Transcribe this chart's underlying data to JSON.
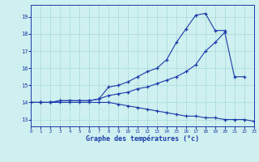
{
  "hours": [
    0,
    1,
    2,
    3,
    4,
    5,
    6,
    7,
    8,
    9,
    10,
    11,
    12,
    13,
    14,
    15,
    16,
    17,
    18,
    19,
    20,
    21,
    22,
    23
  ],
  "line_top": [
    14.0,
    14.0,
    14.0,
    14.1,
    14.1,
    14.1,
    14.1,
    14.2,
    14.9,
    15.0,
    15.2,
    15.5,
    15.8,
    16.0,
    16.5,
    17.5,
    18.3,
    19.1,
    19.2,
    18.2,
    18.2,
    null,
    null,
    null
  ],
  "line_mid": [
    14.0,
    14.0,
    14.0,
    14.1,
    14.1,
    14.1,
    14.1,
    14.2,
    14.4,
    14.5,
    14.6,
    14.8,
    14.9,
    15.1,
    15.3,
    15.5,
    15.8,
    16.2,
    17.0,
    17.5,
    18.1,
    15.5,
    15.5,
    null
  ],
  "line_bot": [
    14.0,
    14.0,
    14.0,
    14.0,
    14.0,
    14.0,
    14.0,
    14.0,
    14.0,
    13.9,
    13.8,
    13.7,
    13.6,
    13.5,
    13.4,
    13.3,
    13.2,
    13.2,
    13.1,
    13.1,
    13.0,
    13.0,
    13.0,
    12.9
  ],
  "bg_color": "#cff0f0",
  "grid_color": "#a8d8d8",
  "line_color": "#1a3aaa",
  "xlabel": "Graphe des températures (°c)",
  "yticks": [
    13,
    14,
    15,
    16,
    17,
    18,
    19
  ],
  "ylim": [
    12.6,
    19.7
  ],
  "xlim": [
    0,
    23
  ]
}
